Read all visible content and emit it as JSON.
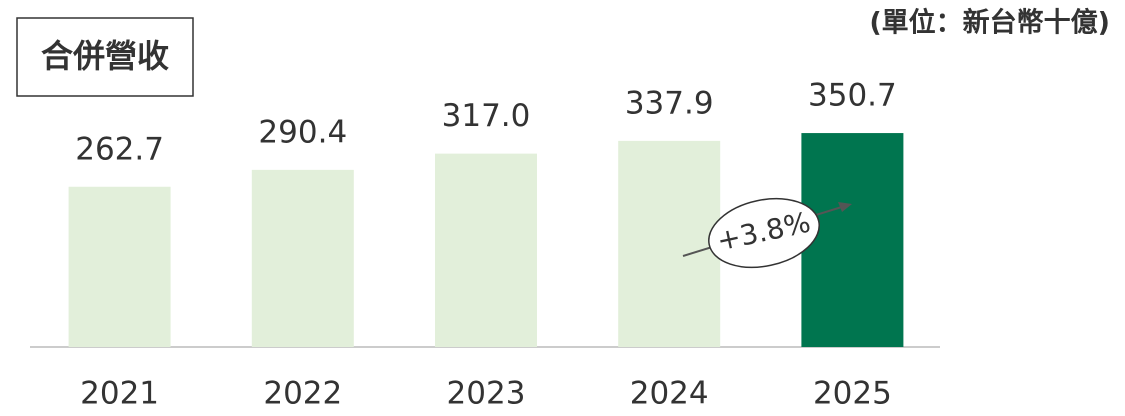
{
  "chart_data": {
    "type": "bar",
    "title": "合併營收",
    "subtitle": "(單位：新台幣十億)",
    "categories": [
      "2021",
      "2022",
      "2023",
      "2024",
      "2025"
    ],
    "values": [
      262.7,
      290.4,
      317.0,
      337.9,
      350.7
    ],
    "value_labels": [
      "262.7",
      "290.4",
      "317.0",
      "337.9",
      "350.7"
    ],
    "colors": [
      "#e2efda",
      "#e2efda",
      "#e2efda",
      "#e2efda",
      "#00754f"
    ],
    "ylim": [
      0,
      400
    ],
    "annotation": "+3.8%"
  }
}
